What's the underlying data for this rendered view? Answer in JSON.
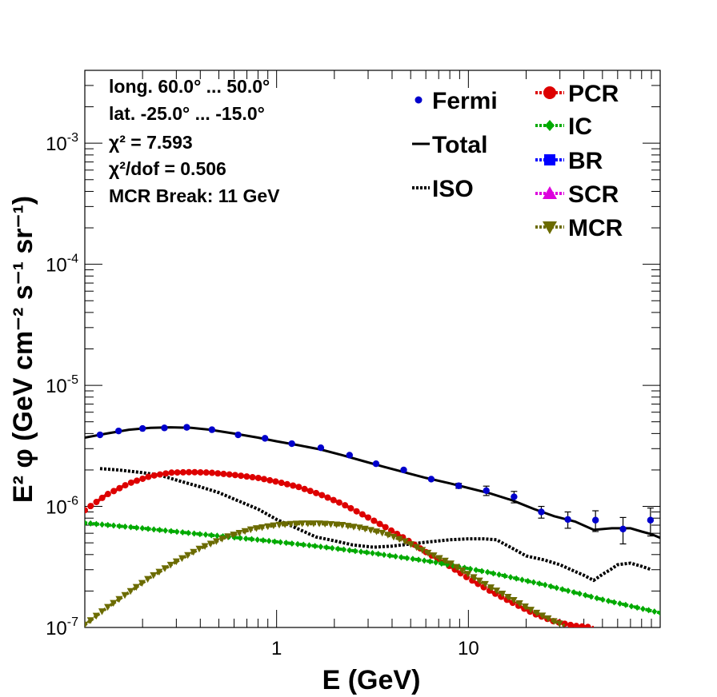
{
  "chart_data": {
    "type": "line",
    "xscale": "log",
    "yscale": "log",
    "xlim": [
      0.1,
      100
    ],
    "ylim": [
      1e-07,
      0.004
    ],
    "xlabel": "E (GeV)",
    "ylabel": "E² φ (GeV cm⁻² s⁻¹ sr⁻¹)",
    "x_ticks": [
      {
        "value": 1,
        "label": "1"
      },
      {
        "value": 10,
        "label": "10"
      }
    ],
    "y_ticks": [
      {
        "value": 1e-07,
        "base": "10",
        "exp": "-7"
      },
      {
        "value": 1e-06,
        "base": "10",
        "exp": "-6"
      },
      {
        "value": 1e-05,
        "base": "10",
        "exp": "-5"
      },
      {
        "value": 0.0001,
        "base": "10",
        "exp": "-4"
      },
      {
        "value": 0.001,
        "base": "10",
        "exp": "-3"
      }
    ],
    "info": [
      "long. 60.0° ... 50.0°",
      "lat. -25.0° ... -15.0°",
      "χ² = 7.593",
      "χ²/dof = 0.506",
      "MCR Break: 11 GeV"
    ],
    "legend_left": [
      {
        "label": "Fermi",
        "style": "point",
        "color": "#0000cc"
      },
      {
        "label": "Total",
        "style": "line",
        "color": "#000000"
      },
      {
        "label": "ISO",
        "style": "dotted",
        "color": "#000000"
      }
    ],
    "legend_right": [
      {
        "label": "PCR",
        "marker": "circle",
        "color": "#dd0000"
      },
      {
        "label": "IC",
        "marker": "diamond",
        "color": "#00aa00"
      },
      {
        "label": "BR",
        "marker": "square",
        "color": "#0000ff"
      },
      {
        "label": "SCR",
        "marker": "triangle-up",
        "color": "#dd00dd"
      },
      {
        "label": "MCR",
        "marker": "triangle-down",
        "color": "#6b6b00"
      }
    ],
    "fermi": {
      "name": "Fermi",
      "color": "#0000cc",
      "points": [
        {
          "x": 0.12,
          "y": 3.9e-06,
          "err": 0
        },
        {
          "x": 0.15,
          "y": 4.2e-06,
          "err": 0
        },
        {
          "x": 0.2,
          "y": 4.4e-06,
          "err": 0
        },
        {
          "x": 0.26,
          "y": 4.45e-06,
          "err": 0
        },
        {
          "x": 0.34,
          "y": 4.5e-06,
          "err": 0
        },
        {
          "x": 0.46,
          "y": 4.3e-06,
          "err": 0
        },
        {
          "x": 0.63,
          "y": 3.9e-06,
          "err": 0
        },
        {
          "x": 0.87,
          "y": 3.65e-06,
          "err": 0
        },
        {
          "x": 1.2,
          "y": 3.3e-06,
          "err": 0
        },
        {
          "x": 1.7,
          "y": 3.05e-06,
          "err": 0
        },
        {
          "x": 2.4,
          "y": 2.65e-06,
          "err": 0
        },
        {
          "x": 3.3,
          "y": 2.25e-06,
          "err": 0
        },
        {
          "x": 4.6,
          "y": 2e-06,
          "err": 0
        },
        {
          "x": 6.4,
          "y": 1.68e-06,
          "err": 0
        },
        {
          "x": 8.9,
          "y": 1.48e-06,
          "err": 7e-08
        },
        {
          "x": 12.4,
          "y": 1.35e-06,
          "err": 1.2e-07
        },
        {
          "x": 17.3,
          "y": 1.2e-06,
          "err": 1.3e-07
        },
        {
          "x": 24,
          "y": 9e-07,
          "err": 1e-07
        },
        {
          "x": 33,
          "y": 7.8e-07,
          "err": 1.2e-07
        },
        {
          "x": 46,
          "y": 7.7e-07,
          "err": 1.5e-07
        },
        {
          "x": 64,
          "y": 6.5e-07,
          "err": 1.6e-07
        },
        {
          "x": 89,
          "y": 7.7e-07,
          "err": 2e-07
        }
      ]
    },
    "series": [
      {
        "name": "Total",
        "color": "#000000",
        "style": "solid",
        "x": [
          0.1,
          0.13,
          0.17,
          0.22,
          0.28,
          0.36,
          0.45,
          0.6,
          0.8,
          1.0,
          1.3,
          1.7,
          2.2,
          2.8,
          3.6,
          4.6,
          6.0,
          8.0,
          10,
          13,
          17,
          22,
          28,
          36,
          45,
          56,
          70,
          80,
          90,
          100
        ],
        "y": [
          3.7e-06,
          4e-06,
          4.3e-06,
          4.45e-06,
          4.5e-06,
          4.45e-06,
          4.3e-06,
          4e-06,
          3.7e-06,
          3.45e-06,
          3.2e-06,
          2.95e-06,
          2.65e-06,
          2.38e-06,
          2.13e-06,
          1.92e-06,
          1.72e-06,
          1.55e-06,
          1.42e-06,
          1.28e-06,
          1.12e-06,
          9.5e-07,
          8.3e-07,
          7.5e-07,
          6.4e-07,
          6.6e-07,
          6.6e-07,
          6.2e-07,
          5.9e-07,
          5.5e-07
        ]
      },
      {
        "name": "ISO",
        "color": "#000000",
        "style": "dotted",
        "x": [
          0.12,
          0.15,
          0.2,
          0.25,
          0.3,
          0.4,
          0.5,
          0.6,
          0.8,
          1.0,
          1.3,
          1.6,
          2.0,
          2.5,
          3.2,
          4.0,
          5.0,
          6.3,
          8.0,
          10,
          12,
          14,
          17,
          20,
          25,
          30,
          36,
          40,
          45,
          50,
          55,
          60,
          70,
          80,
          90
        ],
        "y": [
          2.05e-06,
          2e-06,
          1.9e-06,
          1.8e-06,
          1.65e-06,
          1.45e-06,
          1.3e-06,
          1.15e-06,
          9.5e-07,
          7.8e-07,
          6.5e-07,
          5.6e-07,
          5.2e-07,
          4.8e-07,
          4.6e-07,
          4.7e-07,
          4.9e-07,
          5.1e-07,
          5.3e-07,
          5.4e-07,
          5.4e-07,
          5.3e-07,
          4.5e-07,
          3.9e-07,
          3.6e-07,
          3.3e-07,
          2.9e-07,
          2.7e-07,
          2.45e-07,
          2.75e-07,
          3e-07,
          3.3e-07,
          3.4e-07,
          3.2e-07,
          3e-07
        ]
      },
      {
        "name": "PCR",
        "color": "#dd0000",
        "style": "dotted",
        "marker": "circle",
        "x": [
          0.1,
          0.13,
          0.17,
          0.22,
          0.28,
          0.36,
          0.45,
          0.6,
          0.8,
          1.0,
          1.3,
          1.7,
          2.2,
          2.8,
          3.6,
          4.6,
          6.0,
          8.0,
          10,
          13,
          17,
          22,
          28,
          36,
          45
        ],
        "y": [
          9.3e-07,
          1.25e-06,
          1.55e-06,
          1.78e-06,
          1.9e-06,
          1.92e-06,
          1.9e-06,
          1.82e-06,
          1.72e-06,
          1.6e-06,
          1.45e-06,
          1.25e-06,
          1.05e-06,
          8.6e-07,
          6.9e-07,
          5.5e-07,
          4.2e-07,
          3.2e-07,
          2.55e-07,
          2e-07,
          1.6e-07,
          1.3e-07,
          1.12e-07,
          1.03e-07,
          1e-07
        ]
      },
      {
        "name": "IC",
        "color": "#00aa00",
        "style": "dotted",
        "marker": "diamond",
        "x": [
          0.1,
          0.2,
          0.4,
          0.8,
          1.6,
          3.2,
          6.4,
          12.8,
          25,
          50,
          100
        ],
        "y": [
          7.3e-07,
          6.6e-07,
          5.9e-07,
          5.3e-07,
          4.7e-07,
          4.1e-07,
          3.5e-07,
          2.85e-07,
          2.25e-07,
          1.7e-07,
          1.32e-07
        ]
      },
      {
        "name": "MCR",
        "color": "#6b6b00",
        "style": "dotted",
        "marker": "triangle-down",
        "x": [
          0.1,
          0.13,
          0.17,
          0.22,
          0.3,
          0.4,
          0.55,
          0.75,
          1.0,
          1.3,
          1.7,
          2.2,
          2.8,
          3.6,
          4.6,
          6.0,
          8.0,
          10,
          13,
          17,
          22,
          28,
          32
        ],
        "y": [
          1.05e-07,
          1.45e-07,
          1.95e-07,
          2.6e-07,
          3.5e-07,
          4.5e-07,
          5.6e-07,
          6.5e-07,
          7e-07,
          7.2e-07,
          7.2e-07,
          7e-07,
          6.6e-07,
          6e-07,
          5.2e-07,
          4.2e-07,
          3.4e-07,
          2.75e-07,
          2.15e-07,
          1.7e-07,
          1.35e-07,
          1.12e-07,
          1.03e-07
        ]
      }
    ]
  }
}
